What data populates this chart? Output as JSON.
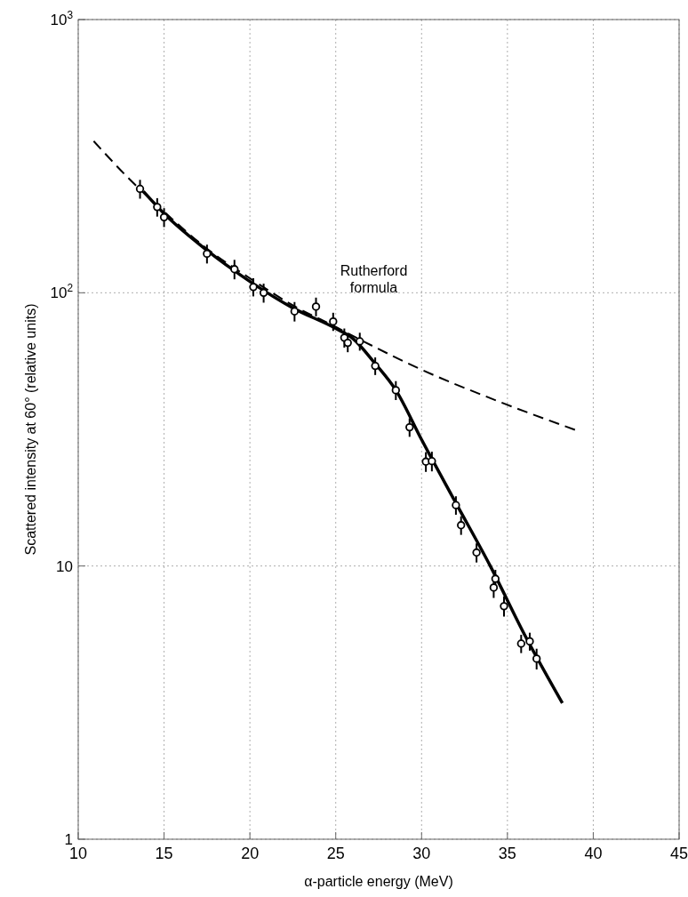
{
  "chart_data": {
    "type": "scatter",
    "xlabel": "α-particle energy (MeV)",
    "ylabel": "Scattered intensity at 60° (relative units)",
    "log": "y",
    "grid": true,
    "xlim": [
      10,
      45
    ],
    "xticks": [
      10,
      15,
      20,
      25,
      30,
      35,
      40,
      45
    ],
    "ylim": [
      1,
      1000
    ],
    "yticks": [
      1,
      10,
      {
        "value": 100,
        "label": "10$^{2}$"
      },
      {
        "value": 1000,
        "label": "10$^{3}$"
      }
    ],
    "series": [
      {
        "type": "line",
        "name": "Rutherford formula",
        "line_style": "dashed",
        "marker": "none",
        "color": "#000000",
        "x": [
          10.9,
          13,
          15,
          17.5,
          20,
          22.5,
          25,
          26.7,
          29.8,
          34.5,
          39
        ],
        "values": [
          359,
          260,
          198,
          145,
          113,
          90,
          75,
          66,
          53,
          40,
          31.4
        ]
      },
      {
        "type": "line",
        "line_style": "solid",
        "marker": "none",
        "color": "#000000",
        "x": [
          13.8,
          15,
          17.5,
          20,
          22.5,
          25,
          26,
          27.3,
          28.5,
          30,
          32,
          34,
          36,
          38.2
        ],
        "values": [
          235,
          195,
          143,
          110,
          88,
          74,
          68,
          55,
          44,
          29,
          17,
          10,
          5.6,
          3.15
        ]
      },
      {
        "marker": "circle",
        "color": "#000000",
        "x": [
          13.6,
          14.6,
          15.0,
          17.5,
          19.1,
          20.2,
          20.8,
          22.6,
          23.85,
          24.85,
          25.5,
          25.7,
          26.4,
          27.3,
          28.5,
          29.3,
          30.25,
          30.6,
          32.0,
          32.3,
          33.2,
          34.3,
          34.2,
          34.8,
          35.8,
          36.3,
          36.7
        ],
        "values": [
          240,
          206,
          189,
          139,
          122,
          105,
          100,
          85.5,
          89,
          78.5,
          68.5,
          65.6,
          66.4,
          54,
          44,
          32.2,
          24.1,
          24.2,
          16.7,
          14.1,
          11.2,
          8.98,
          8.34,
          7.13,
          5.2,
          5.3,
          4.58
        ],
        "errors": [
          19,
          16,
          15,
          11,
          10,
          8,
          8,
          7,
          7,
          6,
          5.5,
          5,
          5,
          4,
          3.5,
          2.5,
          2,
          2,
          1.3,
          1.1,
          0.9,
          0.7,
          0.7,
          0.6,
          0.4,
          0.4,
          0.4
        ]
      }
    ]
  }
}
